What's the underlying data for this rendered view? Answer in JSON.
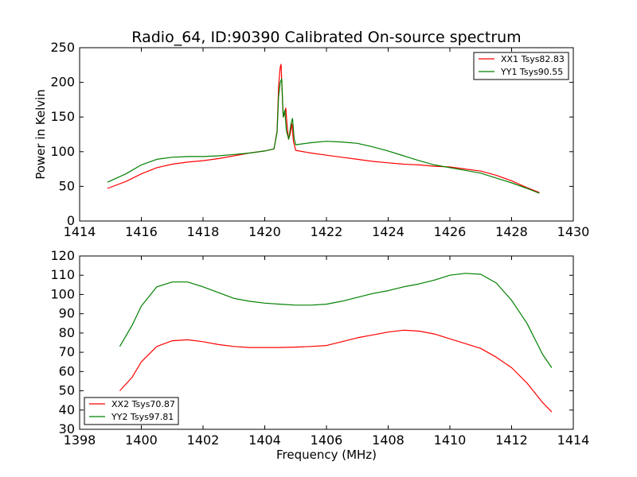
{
  "chart_data": [
    {
      "type": "line",
      "title": "Radio_64, ID:90390 Calibrated On-source spectrum",
      "xlabel": "",
      "ylabel": "Power in Kelvin",
      "xlim": [
        1414,
        1430
      ],
      "ylim": [
        0,
        250
      ],
      "xticks": [
        1414,
        1416,
        1418,
        1420,
        1422,
        1424,
        1426,
        1428,
        1430
      ],
      "yticks": [
        0,
        50,
        100,
        150,
        200,
        250
      ],
      "legend": "top-right",
      "grid": false,
      "series": [
        {
          "name": "XX1 Tsys82.83",
          "color": "#ff0000",
          "points": [
            [
              1414.9,
              47
            ],
            [
              1415.5,
              57
            ],
            [
              1416.0,
              68
            ],
            [
              1416.5,
              77
            ],
            [
              1417.0,
              82
            ],
            [
              1417.5,
              85
            ],
            [
              1418.0,
              87
            ],
            [
              1418.5,
              90
            ],
            [
              1419.0,
              94
            ],
            [
              1419.5,
              98
            ],
            [
              1420.0,
              101
            ],
            [
              1420.3,
              104
            ],
            [
              1420.4,
              130
            ],
            [
              1420.45,
              195
            ],
            [
              1420.5,
              222
            ],
            [
              1420.53,
              226
            ],
            [
              1420.56,
              190
            ],
            [
              1420.6,
              150
            ],
            [
              1420.65,
              155
            ],
            [
              1420.68,
              163
            ],
            [
              1420.72,
              140
            ],
            [
              1420.77,
              118
            ],
            [
              1420.82,
              125
            ],
            [
              1420.88,
              140
            ],
            [
              1420.93,
              115
            ],
            [
              1421.0,
              102
            ],
            [
              1421.5,
              98
            ],
            [
              1422.0,
              95
            ],
            [
              1422.5,
              92
            ],
            [
              1423.0,
              89
            ],
            [
              1423.5,
              86
            ],
            [
              1424.0,
              84
            ],
            [
              1424.5,
              82
            ],
            [
              1425.0,
              81
            ],
            [
              1425.5,
              79
            ],
            [
              1426.0,
              78
            ],
            [
              1426.5,
              75
            ],
            [
              1427.0,
              72
            ],
            [
              1427.5,
              66
            ],
            [
              1428.0,
              58
            ],
            [
              1428.5,
              48
            ],
            [
              1428.9,
              41
            ]
          ]
        },
        {
          "name": "YY1 Tsys90.55",
          "color": "#008000",
          "points": [
            [
              1414.9,
              56
            ],
            [
              1415.5,
              68
            ],
            [
              1416.0,
              81
            ],
            [
              1416.5,
              89
            ],
            [
              1417.0,
              92
            ],
            [
              1417.5,
              93
            ],
            [
              1418.0,
              93
            ],
            [
              1418.5,
              94
            ],
            [
              1419.0,
              96
            ],
            [
              1419.5,
              98
            ],
            [
              1420.0,
              101
            ],
            [
              1420.3,
              104
            ],
            [
              1420.4,
              128
            ],
            [
              1420.45,
              180
            ],
            [
              1420.5,
              200
            ],
            [
              1420.55,
              205
            ],
            [
              1420.6,
              150
            ],
            [
              1420.65,
              160
            ],
            [
              1420.7,
              130
            ],
            [
              1420.78,
              118
            ],
            [
              1420.85,
              140
            ],
            [
              1420.9,
              148
            ],
            [
              1420.95,
              120
            ],
            [
              1421.0,
              110
            ],
            [
              1421.5,
              113
            ],
            [
              1422.0,
              115
            ],
            [
              1422.5,
              114
            ],
            [
              1423.0,
              112
            ],
            [
              1423.5,
              107
            ],
            [
              1424.0,
              101
            ],
            [
              1424.5,
              94
            ],
            [
              1425.0,
              87
            ],
            [
              1425.5,
              81
            ],
            [
              1426.0,
              77
            ],
            [
              1426.5,
              73
            ],
            [
              1427.0,
              69
            ],
            [
              1427.5,
              62
            ],
            [
              1428.0,
              55
            ],
            [
              1428.5,
              47
            ],
            [
              1428.9,
              40
            ]
          ]
        }
      ]
    },
    {
      "type": "line",
      "title": "",
      "xlabel": "Frequency (MHz)",
      "ylabel": "",
      "xlim": [
        1398,
        1414
      ],
      "ylim": [
        30,
        120
      ],
      "xticks": [
        1398,
        1400,
        1402,
        1404,
        1406,
        1408,
        1410,
        1412,
        1414
      ],
      "yticks": [
        30,
        40,
        50,
        60,
        70,
        80,
        90,
        100,
        110,
        120
      ],
      "legend": "bottom-left",
      "grid": false,
      "series": [
        {
          "name": "XX2 Tsys70.87",
          "color": "#ff0000",
          "points": [
            [
              1399.3,
              50
            ],
            [
              1399.7,
              57
            ],
            [
              1400.0,
              65
            ],
            [
              1400.5,
              73
            ],
            [
              1401.0,
              76
            ],
            [
              1401.5,
              76.5
            ],
            [
              1402.0,
              75.5
            ],
            [
              1402.5,
              74
            ],
            [
              1403.0,
              73
            ],
            [
              1403.5,
              72.5
            ],
            [
              1404.0,
              72.5
            ],
            [
              1404.5,
              72.5
            ],
            [
              1405.0,
              72.7
            ],
            [
              1405.5,
              73
            ],
            [
              1406.0,
              73.5
            ],
            [
              1406.5,
              75.5
            ],
            [
              1407.0,
              77.5
            ],
            [
              1407.5,
              79
            ],
            [
              1408.0,
              80.5
            ],
            [
              1408.5,
              81.5
            ],
            [
              1409.0,
              81
            ],
            [
              1409.5,
              79.5
            ],
            [
              1410.0,
              77
            ],
            [
              1410.5,
              74.5
            ],
            [
              1411.0,
              72
            ],
            [
              1411.5,
              67.5
            ],
            [
              1412.0,
              62
            ],
            [
              1412.5,
              54
            ],
            [
              1413.0,
              44
            ],
            [
              1413.3,
              39
            ]
          ]
        },
        {
          "name": "YY2 Tsys97.81",
          "color": "#008000",
          "points": [
            [
              1399.3,
              73
            ],
            [
              1399.7,
              84
            ],
            [
              1400.0,
              94
            ],
            [
              1400.5,
              104
            ],
            [
              1401.0,
              106.5
            ],
            [
              1401.5,
              106.5
            ],
            [
              1402.0,
              104
            ],
            [
              1402.5,
              101
            ],
            [
              1403.0,
              98
            ],
            [
              1403.5,
              96.5
            ],
            [
              1404.0,
              95.5
            ],
            [
              1404.5,
              95
            ],
            [
              1405.0,
              94.5
            ],
            [
              1405.5,
              94.5
            ],
            [
              1406.0,
              95
            ],
            [
              1406.5,
              96.5
            ],
            [
              1407.0,
              98.5
            ],
            [
              1407.5,
              100.5
            ],
            [
              1408.0,
              102
            ],
            [
              1408.5,
              104
            ],
            [
              1409.0,
              105.5
            ],
            [
              1409.5,
              107.5
            ],
            [
              1410.0,
              110
            ],
            [
              1410.5,
              111
            ],
            [
              1411.0,
              110.5
            ],
            [
              1411.5,
              106
            ],
            [
              1412.0,
              97
            ],
            [
              1412.5,
              85
            ],
            [
              1413.0,
              69
            ],
            [
              1413.3,
              62
            ]
          ]
        }
      ]
    }
  ]
}
